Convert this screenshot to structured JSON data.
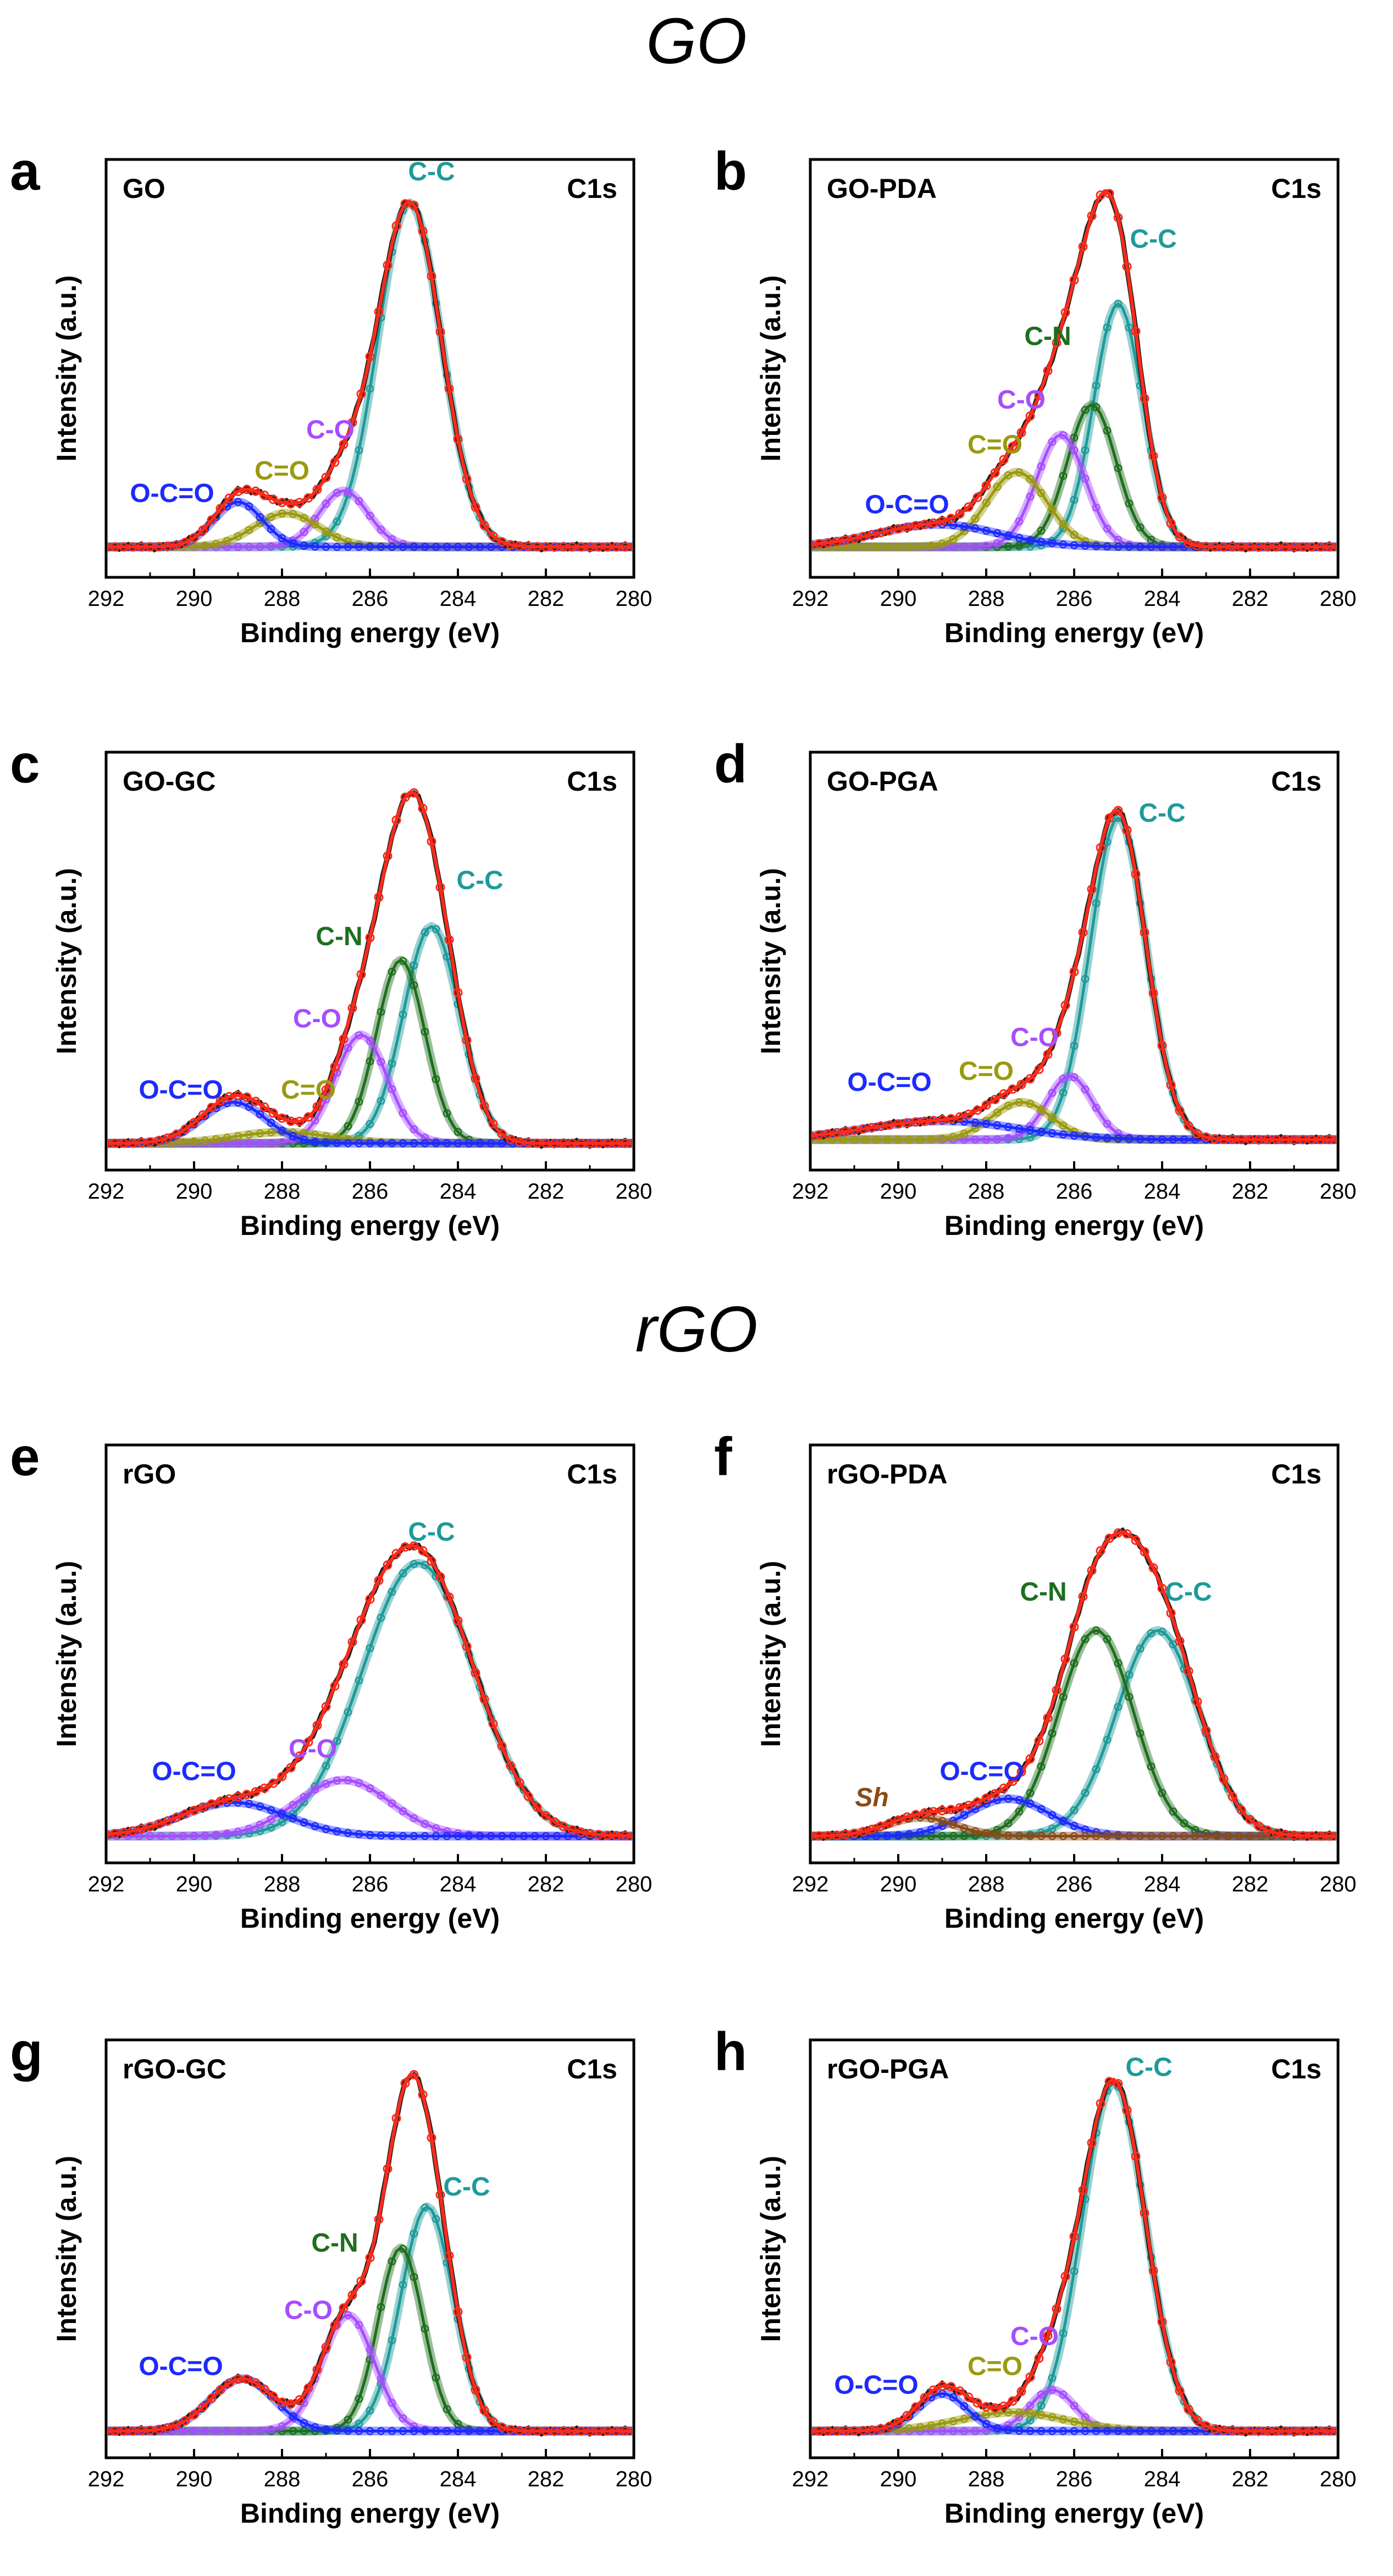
{
  "titles": {
    "top": "GO",
    "bottom": "rGO"
  },
  "colors": {
    "envelope": "#ff2a1a",
    "data": "#222222",
    "CC": "#1e9a9a",
    "CO": "#a64dff",
    "CeqO": "#9a9a10",
    "OCeqO": "#1c2aff",
    "CN": "#1e6e1e",
    "Sh": "#8a4b16"
  },
  "chart_data": [
    {
      "type": "line",
      "panel": "a",
      "sample": "GO",
      "region": "C1s",
      "xlabel": "Binding energy (eV)",
      "ylabel": "Intensity (a.u.)",
      "xlim": [
        292,
        280
      ],
      "xticks": [
        "292",
        "290",
        "288",
        "286",
        "284",
        "282",
        "280"
      ],
      "baseline": 0.03,
      "series": [
        {
          "name": "C-C",
          "key": "CC",
          "center": 285.1,
          "fwhm": 1.7,
          "height": 0.92,
          "label": {
            "x": 284.6,
            "y": 1.01
          }
        },
        {
          "name": "C-O",
          "key": "CO",
          "center": 286.6,
          "fwhm": 1.3,
          "height": 0.15,
          "label": {
            "x": 286.9,
            "y": 0.32
          }
        },
        {
          "name": "C=O",
          "key": "CeqO",
          "center": 287.9,
          "fwhm": 1.7,
          "height": 0.09,
          "label": {
            "x": 288.0,
            "y": 0.21
          }
        },
        {
          "name": "O-C=O",
          "key": "OCeqO",
          "center": 289.0,
          "fwhm": 1.3,
          "height": 0.12,
          "label": {
            "x": 290.5,
            "y": 0.15
          }
        }
      ]
    },
    {
      "type": "line",
      "panel": "b",
      "sample": "GO-PDA",
      "region": "C1s",
      "xlabel": "Binding energy (eV)",
      "ylabel": "Intensity (a.u.)",
      "xlim": [
        292,
        280
      ],
      "xticks": [
        "292",
        "290",
        "288",
        "286",
        "284",
        "282",
        "280"
      ],
      "baseline": 0.03,
      "series": [
        {
          "name": "C-C",
          "key": "CC",
          "center": 285.0,
          "fwhm": 1.3,
          "height": 0.65,
          "label": {
            "x": 284.2,
            "y": 0.83
          }
        },
        {
          "name": "C-N",
          "key": "CN",
          "center": 285.6,
          "fwhm": 1.3,
          "height": 0.38,
          "label": {
            "x": 286.6,
            "y": 0.57
          }
        },
        {
          "name": "C-O",
          "key": "CO",
          "center": 286.3,
          "fwhm": 1.3,
          "height": 0.3,
          "label": {
            "x": 287.2,
            "y": 0.4
          }
        },
        {
          "name": "C=O",
          "key": "CeqO",
          "center": 287.3,
          "fwhm": 1.6,
          "height": 0.2,
          "label": {
            "x": 287.8,
            "y": 0.28
          }
        },
        {
          "name": "O-C=O",
          "key": "OCeqO",
          "center": 289.1,
          "fwhm": 3.2,
          "height": 0.06,
          "label": {
            "x": 289.8,
            "y": 0.12
          }
        }
      ]
    },
    {
      "type": "line",
      "panel": "c",
      "sample": "GO-GC",
      "region": "C1s",
      "xlabel": "Binding energy (eV)",
      "ylabel": "Intensity (a.u.)",
      "xlim": [
        292,
        280
      ],
      "xticks": [
        "292",
        "290",
        "288",
        "286",
        "284",
        "282",
        "280"
      ],
      "baseline": 0.02,
      "series": [
        {
          "name": "C-C",
          "key": "CC",
          "center": 284.6,
          "fwhm": 1.5,
          "height": 0.58,
          "label": {
            "x": 283.5,
            "y": 0.7
          }
        },
        {
          "name": "C-N",
          "key": "CN",
          "center": 285.3,
          "fwhm": 1.3,
          "height": 0.49,
          "label": {
            "x": 286.7,
            "y": 0.55
          }
        },
        {
          "name": "C-O",
          "key": "CO",
          "center": 286.2,
          "fwhm": 1.4,
          "height": 0.29,
          "label": {
            "x": 287.2,
            "y": 0.33
          }
        },
        {
          "name": "C=O",
          "key": "CeqO",
          "center": 288.0,
          "fwhm": 2.5,
          "height": 0.03,
          "label": {
            "x": 287.4,
            "y": 0.14
          }
        },
        {
          "name": "O-C=O",
          "key": "OCeqO",
          "center": 289.1,
          "fwhm": 1.7,
          "height": 0.11,
          "label": {
            "x": 290.3,
            "y": 0.14
          }
        }
      ]
    },
    {
      "type": "line",
      "panel": "d",
      "sample": "GO-PGA",
      "region": "C1s",
      "xlabel": "Binding energy (eV)",
      "ylabel": "Intensity (a.u.)",
      "xlim": [
        292,
        280
      ],
      "xticks": [
        "292",
        "290",
        "288",
        "286",
        "284",
        "282",
        "280"
      ],
      "baseline": 0.03,
      "series": [
        {
          "name": "C-C",
          "key": "CC",
          "center": 285.0,
          "fwhm": 1.5,
          "height": 0.86,
          "label": {
            "x": 284.0,
            "y": 0.88
          }
        },
        {
          "name": "C-O",
          "key": "CO",
          "center": 286.1,
          "fwhm": 1.2,
          "height": 0.17,
          "label": {
            "x": 286.9,
            "y": 0.28
          }
        },
        {
          "name": "C=O",
          "key": "CeqO",
          "center": 287.2,
          "fwhm": 1.6,
          "height": 0.1,
          "label": {
            "x": 288.0,
            "y": 0.19
          }
        },
        {
          "name": "O-C=O",
          "key": "OCeqO",
          "center": 289.0,
          "fwhm": 4.0,
          "height": 0.05,
          "label": {
            "x": 290.2,
            "y": 0.16
          }
        }
      ]
    },
    {
      "type": "line",
      "panel": "e",
      "sample": "rGO",
      "region": "C1s",
      "xlabel": "Binding energy (eV)",
      "ylabel": "Intensity (a.u.)",
      "xlim": [
        292,
        280
      ],
      "xticks": [
        "292",
        "290",
        "288",
        "286",
        "284",
        "282",
        "280"
      ],
      "baseline": 0.02,
      "series": [
        {
          "name": "C-C",
          "key": "CC",
          "center": 284.9,
          "fwhm": 3.0,
          "height": 0.73,
          "label": {
            "x": 284.6,
            "y": 0.81
          }
        },
        {
          "name": "C-O",
          "key": "CO",
          "center": 286.6,
          "fwhm": 2.5,
          "height": 0.15,
          "label": {
            "x": 287.3,
            "y": 0.23
          }
        },
        {
          "name": "O-C=O",
          "key": "OCeqO",
          "center": 289.1,
          "fwhm": 2.8,
          "height": 0.09,
          "label": {
            "x": 290.0,
            "y": 0.17
          }
        }
      ]
    },
    {
      "type": "line",
      "panel": "f",
      "sample": "rGO-PDA",
      "region": "C1s",
      "xlabel": "Binding energy (eV)",
      "ylabel": "Intensity (a.u.)",
      "xlim": [
        292,
        280
      ],
      "xticks": [
        "292",
        "290",
        "288",
        "286",
        "284",
        "282",
        "280"
      ],
      "baseline": 0.02,
      "series": [
        {
          "name": "C-C",
          "key": "CC",
          "center": 284.1,
          "fwhm": 2.2,
          "height": 0.55,
          "label": {
            "x": 283.4,
            "y": 0.65
          }
        },
        {
          "name": "C-N",
          "key": "CN",
          "center": 285.5,
          "fwhm": 2.0,
          "height": 0.55,
          "label": {
            "x": 286.7,
            "y": 0.65
          }
        },
        {
          "name": "O-C=O",
          "key": "OCeqO",
          "center": 287.5,
          "fwhm": 2.2,
          "height": 0.1,
          "label": {
            "x": 288.1,
            "y": 0.17
          }
        },
        {
          "name": "Sh",
          "key": "Sh",
          "center": 289.5,
          "fwhm": 1.8,
          "height": 0.05,
          "label": {
            "x": 290.6,
            "y": 0.1
          }
        }
      ]
    },
    {
      "type": "line",
      "panel": "g",
      "sample": "rGO-GC",
      "region": "C1s",
      "xlabel": "Binding energy (eV)",
      "ylabel": "Intensity (a.u.)",
      "xlim": [
        292,
        280
      ],
      "xticks": [
        "292",
        "290",
        "288",
        "286",
        "284",
        "282",
        "280"
      ],
      "baseline": 0.02,
      "series": [
        {
          "name": "C-C",
          "key": "CC",
          "center": 284.7,
          "fwhm": 1.4,
          "height": 0.6,
          "label": {
            "x": 283.8,
            "y": 0.65
          }
        },
        {
          "name": "C-N",
          "key": "CN",
          "center": 285.3,
          "fwhm": 1.2,
          "height": 0.49,
          "label": {
            "x": 286.8,
            "y": 0.5
          }
        },
        {
          "name": "C-O",
          "key": "CO",
          "center": 286.5,
          "fwhm": 1.4,
          "height": 0.31,
          "label": {
            "x": 287.4,
            "y": 0.32
          }
        },
        {
          "name": "O-C=O",
          "key": "OCeqO",
          "center": 288.9,
          "fwhm": 1.7,
          "height": 0.14,
          "label": {
            "x": 290.3,
            "y": 0.17
          }
        }
      ]
    },
    {
      "type": "line",
      "panel": "h",
      "sample": "rGO-PGA",
      "region": "C1s",
      "xlabel": "Binding energy (eV)",
      "ylabel": "Intensity (a.u.)",
      "xlim": [
        292,
        280
      ],
      "xticks": [
        "292",
        "290",
        "288",
        "286",
        "284",
        "282",
        "280"
      ],
      "baseline": 0.02,
      "series": [
        {
          "name": "C-C",
          "key": "CC",
          "center": 285.1,
          "fwhm": 1.7,
          "height": 0.93,
          "label": {
            "x": 284.3,
            "y": 0.97
          }
        },
        {
          "name": "C-O",
          "key": "CO",
          "center": 286.5,
          "fwhm": 1.2,
          "height": 0.11,
          "label": {
            "x": 286.9,
            "y": 0.25
          }
        },
        {
          "name": "C=O",
          "key": "CeqO",
          "center": 287.4,
          "fwhm": 2.8,
          "height": 0.05,
          "label": {
            "x": 287.8,
            "y": 0.17
          }
        },
        {
          "name": "O-C=O",
          "key": "OCeqO",
          "center": 289.0,
          "fwhm": 1.3,
          "height": 0.1,
          "label": {
            "x": 290.5,
            "y": 0.12
          }
        }
      ]
    }
  ]
}
